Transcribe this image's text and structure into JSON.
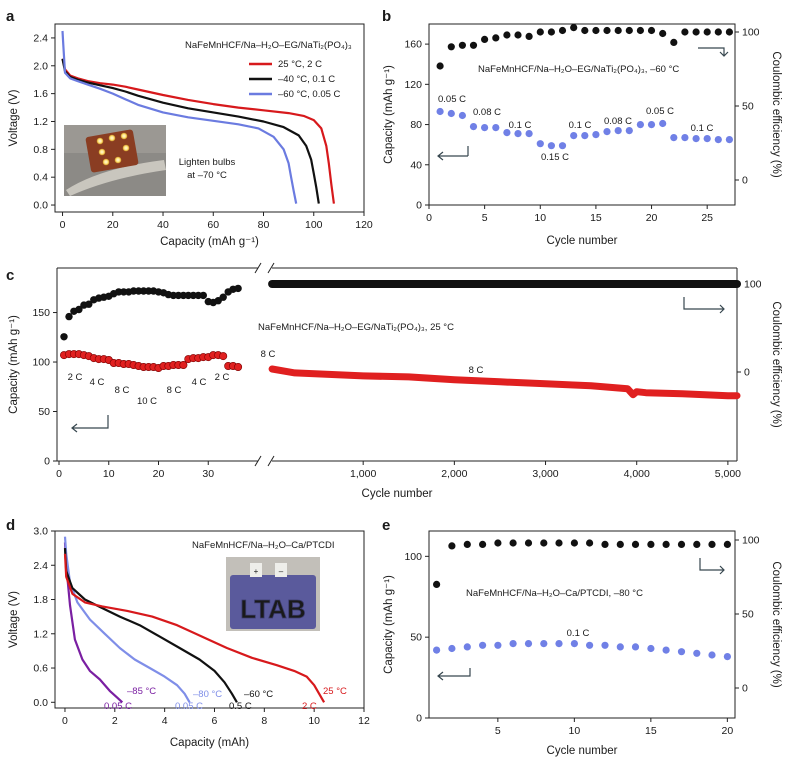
{
  "figure": {
    "panels": [
      {
        "id": "a",
        "label": "a",
        "title": "NaFeMnHCF/Na–H₂O–EG/NaTi₂(PO₄)₃",
        "xlabel": "Capacity (mAh g⁻¹)",
        "ylabel": "Voltage (V)",
        "inset_caption": [
          "Lighten bulbs",
          "at –70 °C"
        ]
      },
      {
        "id": "b",
        "label": "b",
        "title": "NaFeMnHCF/Na–H₂O–EG/NaTi₂(PO₄)₃, –60 °C",
        "xlabel": "Cycle number",
        "ylabel": "Capacity (mAh g⁻¹)",
        "y2label": "Coulombic efficiency (%)"
      },
      {
        "id": "c",
        "label": "c",
        "title": "NaFeMnHCF/Na–H₂O–EG/NaTi₂(PO₄)₃, 25 °C",
        "xlabel": "Cycle number",
        "ylabel": "Capacity (mAh g⁻¹)",
        "y2label": "Coulombic efficiency (%)"
      },
      {
        "id": "d",
        "label": "d",
        "title": "NaFeMnHCF/Na–H₂O–Ca/PTCDI",
        "xlabel": "Capacity (mAh)",
        "ylabel": "Voltage (V)",
        "inset_text": "LTAB"
      },
      {
        "id": "e",
        "label": "e",
        "title": "NaFeMnHCF/Na–H₂O–Ca/PTCDI, –80 °C",
        "xlabel": "Cycle number",
        "ylabel": "Capacity (mAh g⁻¹)",
        "y2label": "Coulombic efficiency (%)"
      }
    ]
  },
  "chart_data": [
    {
      "panel": "a",
      "type": "line",
      "title": "NaFeMnHCF/Na–H₂O–EG/NaTi₂(PO₄)₃",
      "xlabel": "Capacity (mAh g⁻¹)",
      "ylabel": "Voltage (V)",
      "xlim": [
        -3,
        120
      ],
      "ylim": [
        -0.1,
        2.6
      ],
      "xticks": [
        0,
        20,
        40,
        60,
        80,
        100,
        120
      ],
      "yticks": [
        0,
        0.4,
        0.8,
        1.2,
        1.6,
        2.0,
        2.4
      ],
      "legend_position": "top-right",
      "series": [
        {
          "name": "25 °C, 2 C",
          "color": "#d7191c",
          "x": [
            0,
            1,
            3,
            6,
            10,
            15,
            20,
            25,
            30,
            40,
            50,
            60,
            70,
            80,
            90,
            96,
            100,
            103,
            105,
            106,
            107,
            108
          ],
          "y": [
            2.1,
            1.95,
            1.86,
            1.82,
            1.78,
            1.75,
            1.73,
            1.7,
            1.66,
            1.58,
            1.51,
            1.45,
            1.4,
            1.36,
            1.32,
            1.28,
            1.22,
            1.1,
            0.85,
            0.6,
            0.3,
            0.02
          ]
        },
        {
          "name": "–40 °C, 0.1 C",
          "color": "#111111",
          "x": [
            0,
            1,
            3,
            6,
            10,
            15,
            20,
            25,
            30,
            40,
            50,
            60,
            70,
            80,
            88,
            94,
            97,
            99,
            100,
            101,
            102
          ],
          "y": [
            2.1,
            1.92,
            1.84,
            1.8,
            1.76,
            1.72,
            1.68,
            1.63,
            1.57,
            1.47,
            1.39,
            1.33,
            1.27,
            1.2,
            1.12,
            1.0,
            0.85,
            0.65,
            0.45,
            0.25,
            0.02
          ]
        },
        {
          "name": "–60 °C, 0.05 C",
          "color": "#6b7be0",
          "x": [
            0,
            0.3,
            1,
            3,
            6,
            10,
            15,
            20,
            25,
            30,
            40,
            50,
            60,
            70,
            78,
            84,
            88,
            90,
            91,
            92,
            93
          ],
          "y": [
            2.5,
            2.3,
            1.9,
            1.82,
            1.78,
            1.73,
            1.67,
            1.6,
            1.52,
            1.44,
            1.33,
            1.26,
            1.21,
            1.16,
            1.1,
            0.98,
            0.8,
            0.6,
            0.4,
            0.2,
            0.02
          ]
        }
      ],
      "annotations": [
        "Lighten bulbs at –70 °C"
      ]
    },
    {
      "panel": "b",
      "type": "scatter",
      "title": "NaFeMnHCF/Na–H₂O–EG/NaTi₂(PO₄)₃, –60 °C",
      "xlabel": "Cycle number",
      "ylabel": "Capacity (mAh g⁻¹)",
      "y2label": "Coulombic efficiency (%)",
      "xlim": [
        0,
        27.5
      ],
      "ylim": [
        0,
        180
      ],
      "y2lim": [
        0,
        108
      ],
      "xticks": [
        0,
        5,
        10,
        15,
        20,
        25
      ],
      "yticks": [
        0,
        40,
        80,
        120,
        160
      ],
      "y2ticks": [
        0,
        50,
        100
      ],
      "series": [
        {
          "name": "Capacity",
          "axis": "left",
          "color": "#7080e6",
          "x": [
            1,
            2,
            3,
            4,
            5,
            6,
            7,
            8,
            9,
            10,
            11,
            12,
            13,
            14,
            15,
            16,
            17,
            18,
            19,
            20,
            21,
            22,
            23,
            24,
            25,
            26,
            27
          ],
          "y": [
            93,
            91,
            89,
            78,
            77,
            77,
            72,
            71,
            71,
            61,
            59,
            59,
            69,
            69,
            70,
            73,
            74,
            74,
            80,
            80,
            81,
            67,
            67,
            66,
            66,
            65,
            65
          ]
        },
        {
          "name": "Coulombic efficiency",
          "axis": "right",
          "color": "#111111",
          "x": [
            1,
            2,
            3,
            4,
            5,
            6,
            7,
            8,
            9,
            10,
            11,
            12,
            13,
            14,
            15,
            16,
            17,
            18,
            19,
            20,
            21,
            22,
            23,
            24,
            25,
            26,
            27
          ],
          "y": [
            77,
            90,
            91,
            91,
            95,
            96,
            98,
            98,
            97,
            100,
            100,
            101,
            103,
            101,
            101,
            101,
            101,
            101,
            101,
            101,
            99,
            93,
            100,
            100,
            100,
            100,
            100
          ]
        }
      ],
      "rate_labels": [
        "0.05 C",
        "0.08 C",
        "0.1 C",
        "0.15 C",
        "0.1 C",
        "0.08 C",
        "0.05 C",
        "0.1 C"
      ]
    },
    {
      "panel": "c",
      "type": "scatter",
      "title": "NaFeMnHCF/Na–H₂O–EG/NaTi₂(PO₄)₃, 25 °C",
      "xlabel": "Cycle number",
      "ylabel": "Capacity (mAh g⁻¹)",
      "y2label": "Coulombic efficiency (%)",
      "ylim": [
        0,
        195
      ],
      "y2lim": [
        -60,
        105
      ],
      "segment1": {
        "xlim": [
          0,
          40
        ],
        "xticks": [
          0,
          10,
          20,
          30
        ]
      },
      "segment2": {
        "xlim": [
          0,
          5100
        ],
        "xticks": [
          1000,
          2000,
          3000,
          4000,
          5000
        ],
        "xticklabels": [
          "1,000",
          "2,000",
          "3,000",
          "4,000",
          "5,000"
        ]
      },
      "yticks": [
        0,
        50,
        100,
        150
      ],
      "y2ticks": [
        0,
        100
      ],
      "rate_capacity": {
        "color": "#e02020",
        "x": [
          1,
          2,
          3,
          4,
          5,
          6,
          7,
          8,
          9,
          10,
          11,
          12,
          13,
          14,
          15,
          16,
          17,
          18,
          19,
          20,
          21,
          22,
          23,
          24,
          25,
          26,
          27,
          28,
          29,
          30,
          31,
          32,
          33,
          34,
          35,
          36
        ],
        "y": [
          107,
          108,
          108,
          108,
          107,
          106,
          104,
          103,
          103,
          102,
          99,
          99,
          98,
          98,
          97,
          96,
          95,
          95,
          95,
          94,
          96,
          96,
          97,
          97,
          97,
          103,
          104,
          104,
          105,
          105,
          107,
          107,
          106,
          96,
          96,
          95
        ],
        "labels": [
          "2 C",
          "4 C",
          "8 C",
          "10 C",
          "8 C",
          "4 C",
          "2 C"
        ]
      },
      "rate_efficiency": {
        "color": "#111111",
        "x": [
          1,
          2,
          3,
          4,
          5,
          6,
          7,
          8,
          9,
          10,
          11,
          12,
          13,
          14,
          15,
          16,
          17,
          18,
          19,
          20,
          21,
          22,
          23,
          24,
          25,
          26,
          27,
          28,
          29,
          30,
          31,
          32,
          33,
          34,
          35,
          36
        ],
        "y": [
          40,
          63,
          69,
          71,
          76,
          77,
          82,
          84,
          85,
          86,
          89,
          91,
          91,
          91,
          92,
          92,
          92,
          92,
          92,
          91,
          90,
          88,
          87,
          87,
          87,
          87,
          87,
          87,
          87,
          80,
          79,
          81,
          85,
          91,
          94,
          95
        ]
      },
      "long_cycle_capacity": {
        "label": "8 C",
        "color": "#e02020",
        "x": [
          1,
          250,
          500,
          1000,
          1500,
          2000,
          2500,
          3000,
          3500,
          3900,
          3960,
          4000,
          4100,
          4500,
          5000,
          5100
        ],
        "y": [
          93,
          89,
          88,
          86,
          85,
          82,
          80,
          78,
          76,
          73,
          67,
          70,
          69,
          68,
          66,
          66
        ]
      },
      "long_cycle_efficiency": {
        "color": "#111111",
        "x": [
          1,
          5100
        ],
        "y": [
          100,
          100
        ]
      },
      "long_cycle_start_label": "8 C"
    },
    {
      "panel": "d",
      "type": "line",
      "title": "NaFeMnHCF/Na–H₂O–Ca/PTCDI",
      "xlabel": "Capacity (mAh)",
      "ylabel": "Voltage (V)",
      "xlim": [
        -0.4,
        12
      ],
      "ylim": [
        -0.1,
        3.0
      ],
      "xticks": [
        0,
        2,
        4,
        6,
        8,
        10,
        12
      ],
      "yticks": [
        0,
        0.6,
        1.2,
        1.8,
        2.4,
        3.0
      ],
      "series": [
        {
          "name": "–85 °C",
          "rate": "0.05 C",
          "color": "#7a1fa2",
          "x": [
            0,
            0.05,
            0.2,
            0.4,
            0.7,
            1.0,
            1.4,
            1.8,
            2.1,
            2.3
          ],
          "y": [
            2.8,
            2.4,
            1.7,
            1.1,
            0.75,
            0.55,
            0.4,
            0.2,
            0.08,
            0.0
          ]
        },
        {
          "name": "–80 °C",
          "rate": "0.05 C",
          "color": "#7f8ee8",
          "x": [
            0,
            0.05,
            0.2,
            0.5,
            1.0,
            1.6,
            2.2,
            2.8,
            3.4,
            4.0,
            4.5,
            4.8,
            5.0
          ],
          "y": [
            2.9,
            2.6,
            2.1,
            1.75,
            1.45,
            1.2,
            0.95,
            0.75,
            0.6,
            0.45,
            0.3,
            0.15,
            0.0
          ]
        },
        {
          "name": "–60 °C",
          "rate": "0.5 C",
          "color": "#111111",
          "x": [
            0,
            0.05,
            0.3,
            0.8,
            1.5,
            2.2,
            3.0,
            3.8,
            4.6,
            5.4,
            6.0,
            6.4,
            6.7,
            6.9
          ],
          "y": [
            2.7,
            2.3,
            2.0,
            1.8,
            1.65,
            1.5,
            1.35,
            1.15,
            0.95,
            0.75,
            0.55,
            0.35,
            0.15,
            0.0
          ]
        },
        {
          "name": "25 °C",
          "rate": "2 C",
          "color": "#d7191c",
          "x": [
            0,
            0.05,
            0.3,
            0.8,
            1.5,
            2.5,
            3.5,
            4.5,
            5.5,
            6.5,
            7.5,
            8.5,
            9.2,
            9.7,
            10.0,
            10.2,
            10.4
          ],
          "y": [
            2.6,
            2.2,
            1.9,
            1.75,
            1.68,
            1.6,
            1.5,
            1.35,
            1.15,
            0.95,
            0.78,
            0.65,
            0.55,
            0.45,
            0.3,
            0.15,
            0.0
          ]
        }
      ]
    },
    {
      "panel": "e",
      "type": "scatter",
      "title": "NaFeMnHCF/Na–H₂O–Ca/PTCDI, –80 °C",
      "xlabel": "Cycle number",
      "ylabel": "Capacity (mAh g⁻¹)",
      "y2label": "Coulombic efficiency (%)",
      "xlim": [
        0.5,
        20.5
      ],
      "ylim": [
        0,
        120
      ],
      "y2lim": [
        -10,
        110
      ],
      "xticks": [
        5,
        10,
        15,
        20
      ],
      "yticks": [
        0,
        50,
        100
      ],
      "y2ticks": [
        0,
        50,
        100
      ],
      "rate_label": "0.1 C",
      "series": [
        {
          "name": "Capacity",
          "axis": "left",
          "color": "#7080e6",
          "x": [
            1,
            2,
            3,
            4,
            5,
            6,
            7,
            8,
            9,
            10,
            11,
            12,
            13,
            14,
            15,
            16,
            17,
            18,
            19,
            20
          ],
          "y": [
            42,
            43,
            44,
            45,
            45,
            46,
            46,
            46,
            46,
            46,
            45,
            45,
            44,
            44,
            43,
            42,
            41,
            40,
            39,
            38
          ]
        },
        {
          "name": "Coulombic efficiency",
          "axis": "right",
          "color": "#111111",
          "x": [
            1,
            2,
            3,
            4,
            5,
            6,
            7,
            8,
            9,
            10,
            11,
            12,
            13,
            14,
            15,
            16,
            17,
            18,
            19,
            20
          ],
          "y": [
            70,
            96,
            97,
            97,
            98,
            98,
            98,
            98,
            98,
            98,
            98,
            97,
            97,
            97,
            97,
            97,
            97,
            97,
            97,
            97
          ]
        }
      ]
    }
  ]
}
